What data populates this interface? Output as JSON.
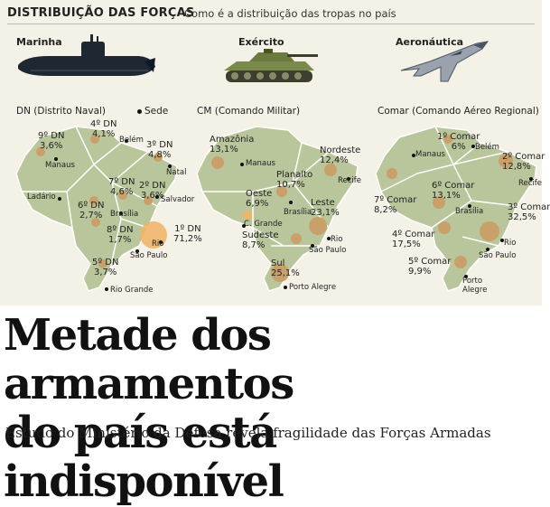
{
  "header": {
    "title": "DISTRIBUIÇÃO DAS FORÇAS",
    "subtitle": "Como é a distribuição das tropas no país"
  },
  "branches": [
    {
      "label": "Marinha",
      "icon": "submarine-icon"
    },
    {
      "label": "Exército",
      "icon": "tank-icon"
    },
    {
      "label": "Aeronáutica",
      "icon": "fighter-jet-icon"
    }
  ],
  "legend": {
    "sede": "Sede"
  },
  "colors": {
    "map_fill": "#b9c59a",
    "map_stroke": "#ffffff",
    "bubble": "#c9a06a",
    "bubble_highlight": "#f0b46a",
    "background": "#f4f1e6"
  },
  "navy": {
    "title": "DN (Distrito Naval)",
    "regions": [
      {
        "name": "4º DN",
        "value": "4,1%"
      },
      {
        "name": "9º DN",
        "value": "3,6%"
      },
      {
        "name": "3º DN",
        "value": "4,8%"
      },
      {
        "name": "7º DN",
        "value": "4,6%"
      },
      {
        "name": "2º DN",
        "value": "3,6%"
      },
      {
        "name": "6º DN",
        "value": "2,7%"
      },
      {
        "name": "8º DN",
        "value": "1,7%"
      },
      {
        "name": "1º DN",
        "value": "71,2%"
      },
      {
        "name": "5º DN",
        "value": "3,7%"
      }
    ],
    "cities": [
      "Belém",
      "Manaus",
      "Natal",
      "Salvador",
      "Ladário",
      "Brasília",
      "Rio",
      "São Paulo",
      "Rio Grande"
    ]
  },
  "army": {
    "title": "CM (Comando Militar)",
    "regions": [
      {
        "name": "Amazônia",
        "value": "13,1%"
      },
      {
        "name": "Nordeste",
        "value": "12,4%"
      },
      {
        "name": "Planalto",
        "value": "10,7%"
      },
      {
        "name": "Oeste",
        "value": "6,9%"
      },
      {
        "name": "Leste",
        "value": "23,1%"
      },
      {
        "name": "Sudeste",
        "value": "8,7%"
      },
      {
        "name": "Sul",
        "value": "25,1%"
      }
    ],
    "cities": [
      "Manaus",
      "Recife",
      "Brasília",
      "C. Grande",
      "Rio",
      "São Paulo",
      "Porto Alegre"
    ]
  },
  "air": {
    "title": "Comar (Comando Aéreo Regional)",
    "regions": [
      {
        "name": "1º Comar",
        "value": "6%"
      },
      {
        "name": "2º Comar",
        "value": "12,8%"
      },
      {
        "name": "7º Comar",
        "value": "8,2%"
      },
      {
        "name": "6º Comar",
        "value": "13,1%"
      },
      {
        "name": "3º Comar",
        "value": "32,5%"
      },
      {
        "name": "4º Comar",
        "value": "17,5%"
      },
      {
        "name": "5º Comar",
        "value": "9,9%"
      }
    ],
    "cities": [
      "Belém",
      "Manaus",
      "Recife",
      "Brasília",
      "Rio",
      "São Paulo",
      "Porto Alegre"
    ]
  },
  "headline": {
    "line1": "Metade dos armamentos",
    "line2": "do país está indisponível"
  },
  "subheadline": "Estudo do Ministério da Defesa revela fragilidade das Forças Armadas"
}
